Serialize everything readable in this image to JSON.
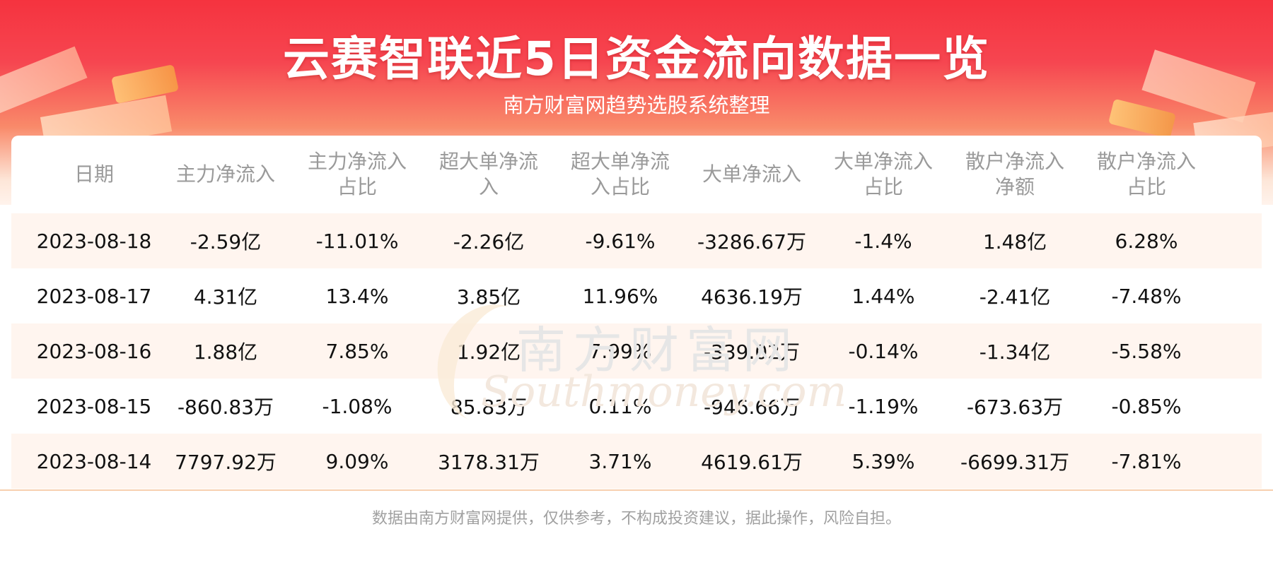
{
  "header": {
    "title": "云赛智联近5日资金流向数据一览",
    "subtitle": "南方财富网趋势选股系统整理"
  },
  "table": {
    "columns": [
      "日期",
      "主力净流入",
      "主力净流入占比",
      "超大单净流入",
      "超大单净流入占比",
      "大单净流入",
      "大单净流入占比",
      "散户净流入净额",
      "散户净流入占比"
    ],
    "rows": [
      [
        "2023-08-18",
        "-2.59亿",
        "-11.01%",
        "-2.26亿",
        "-9.61%",
        "-3286.67万",
        "-1.4%",
        "1.48亿",
        "6.28%"
      ],
      [
        "2023-08-17",
        "4.31亿",
        "13.4%",
        "3.85亿",
        "11.96%",
        "4636.19万",
        "1.44%",
        "-2.41亿",
        "-7.48%"
      ],
      [
        "2023-08-16",
        "1.88亿",
        "7.85%",
        "1.92亿",
        "7.99%",
        "-339.02万",
        "-0.14%",
        "-1.34亿",
        "-5.58%"
      ],
      [
        "2023-08-15",
        "-860.83万",
        "-1.08%",
        "85.83万",
        "0.11%",
        "-946.66万",
        "-1.19%",
        "-673.63万",
        "-0.85%"
      ],
      [
        "2023-08-14",
        "7797.92万",
        "9.09%",
        "3178.31万",
        "3.71%",
        "4619.61万",
        "5.39%",
        "-6699.31万",
        "-7.81%"
      ]
    ]
  },
  "watermark": {
    "cn": "南方财富网",
    "en": "Southmoney.com"
  },
  "footer": {
    "disclaimer": "数据由南方财富网提供，仅供参考，不构成投资建议，据此操作，风险自担。"
  },
  "colors": {
    "banner_top": "#f5333f",
    "row_shade": "#fff5ef",
    "header_text": "#9a9a9a"
  }
}
